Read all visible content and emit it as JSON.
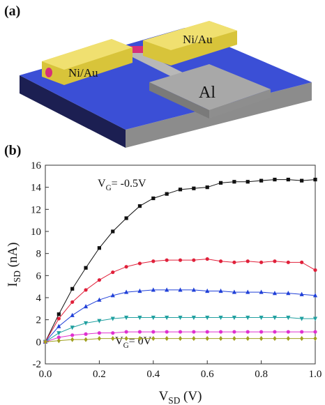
{
  "figure": {
    "panel_a_label": "(a)",
    "panel_b_label": "(b)",
    "device_labels": [
      "Ni/Au",
      "Ni/Au",
      "Al"
    ]
  },
  "chart_data": {
    "type": "line",
    "xlabel": {
      "text": "V",
      "sub": "SD",
      "rest": " (V)"
    },
    "ylabel": {
      "text": "I",
      "sub": "SD",
      "rest": " (nA)"
    },
    "annotations": [
      {
        "text": "V",
        "sub": "G",
        "rest": "= -0.5V"
      },
      {
        "text": "V",
        "sub": "G",
        "rest": "= 0V"
      }
    ],
    "x": [
      0,
      0.05,
      0.1,
      0.15,
      0.2,
      0.25,
      0.3,
      0.35,
      0.4,
      0.45,
      0.5,
      0.55,
      0.6,
      0.65,
      0.7,
      0.75,
      0.8,
      0.85,
      0.9,
      0.95,
      1.0
    ],
    "series": [
      {
        "color": "#111111",
        "marker": "square",
        "values": [
          0,
          2.5,
          4.8,
          6.7,
          8.5,
          10.0,
          11.2,
          12.3,
          13.0,
          13.4,
          13.8,
          13.9,
          14.0,
          14.4,
          14.5,
          14.5,
          14.6,
          14.7,
          14.7,
          14.6,
          14.7
        ]
      },
      {
        "color": "#e0203a",
        "marker": "circle",
        "values": [
          0,
          2.1,
          3.6,
          4.7,
          5.6,
          6.3,
          6.8,
          7.1,
          7.3,
          7.4,
          7.4,
          7.4,
          7.5,
          7.3,
          7.2,
          7.3,
          7.2,
          7.3,
          7.2,
          7.2,
          6.5
        ]
      },
      {
        "color": "#2040d8",
        "marker": "triangle",
        "values": [
          0,
          1.4,
          2.4,
          3.2,
          3.8,
          4.2,
          4.5,
          4.6,
          4.7,
          4.7,
          4.7,
          4.7,
          4.6,
          4.6,
          4.5,
          4.5,
          4.5,
          4.4,
          4.4,
          4.3,
          4.2
        ]
      },
      {
        "color": "#20a0a0",
        "marker": "triangle-down",
        "values": [
          0,
          0.8,
          1.3,
          1.7,
          1.9,
          2.1,
          2.2,
          2.2,
          2.2,
          2.2,
          2.2,
          2.2,
          2.2,
          2.2,
          2.2,
          2.2,
          2.2,
          2.2,
          2.2,
          2.1,
          2.1
        ]
      },
      {
        "color": "#e030d0",
        "marker": "circle",
        "values": [
          0,
          0.4,
          0.6,
          0.7,
          0.8,
          0.8,
          0.9,
          0.9,
          0.9,
          0.9,
          0.9,
          0.9,
          0.9,
          0.9,
          0.9,
          0.9,
          0.9,
          0.9,
          0.9,
          0.9,
          0.9
        ]
      },
      {
        "color": "#a0a020",
        "marker": "diamond",
        "values": [
          0,
          0.1,
          0.2,
          0.2,
          0.3,
          0.3,
          0.3,
          0.3,
          0.3,
          0.3,
          0.3,
          0.3,
          0.3,
          0.3,
          0.3,
          0.3,
          0.3,
          0.3,
          0.3,
          0.3,
          0.3
        ]
      }
    ],
    "xlim": [
      0,
      1.0
    ],
    "xticks": [
      {
        "value": 0,
        "label": "0.0"
      },
      {
        "value": 0.2,
        "label": "0.2"
      },
      {
        "value": 0.4,
        "label": "0.4"
      },
      {
        "value": 0.6,
        "label": "0.6"
      },
      {
        "value": 0.8,
        "label": "0.8"
      },
      {
        "value": 1.0,
        "label": "1.0"
      }
    ],
    "ylim": [
      -2,
      16
    ],
    "yticks": [
      -2,
      0,
      2,
      4,
      6,
      8,
      10,
      12,
      14,
      16
    ]
  }
}
